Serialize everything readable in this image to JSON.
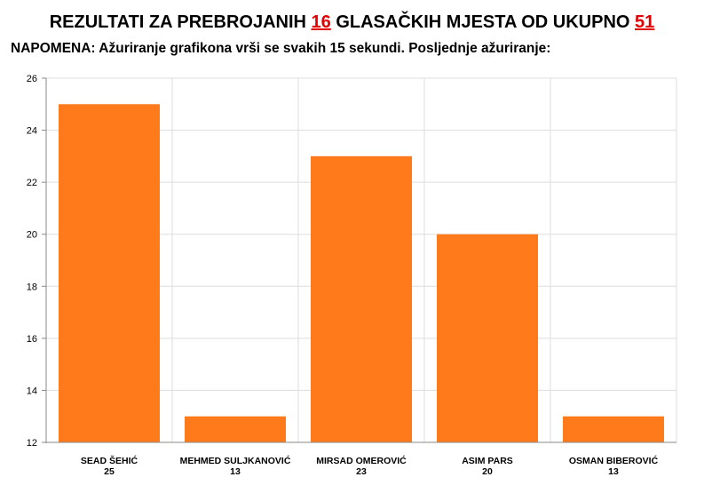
{
  "header": {
    "title_prefix": "REZULTATI ZA PREBROJANIH",
    "counted": "16",
    "title_middle": "GLASAČKIH MJESTA OD UKUPNO",
    "total": "51",
    "note": "NAPOMENA: Ažuriranje grafikona vrši se svakih 15 sekundi. Posljednje ažuriranje:",
    "last_update": ""
  },
  "colors": {
    "bar": "#ff7a1a",
    "grid": "#dddddd",
    "axis": "#888888",
    "highlight": "#e30000"
  },
  "chart_data": {
    "type": "bar",
    "categories": [
      "SEAD ŠEHIĆ",
      "MEHMED SULJKANOVIĆ",
      "MIRSAD OMEROVIĆ",
      "ASIM PARS",
      "OSMAN BIBEROVIĆ"
    ],
    "values": [
      25,
      13,
      23,
      20,
      13
    ],
    "value_labels": [
      "25",
      "13",
      "23",
      "20",
      "13"
    ],
    "yticks": [
      "12",
      "14",
      "16",
      "18",
      "20",
      "22",
      "24",
      "26"
    ],
    "ylim": [
      12,
      26
    ],
    "grid": true,
    "legend": "none"
  }
}
